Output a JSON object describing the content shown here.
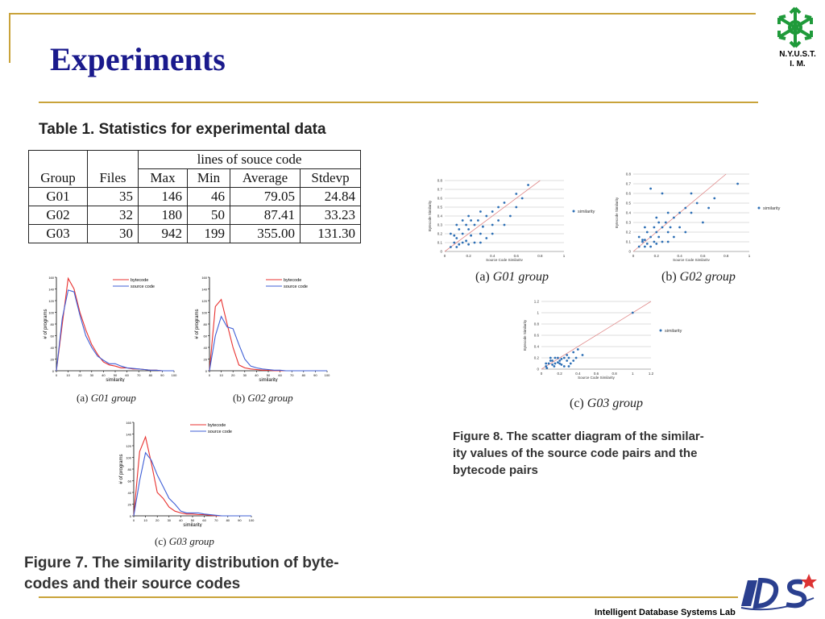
{
  "slide": {
    "title": "Experiments"
  },
  "logo": {
    "caption_line1": "N.Y.U.S.T.",
    "caption_line2": "I. M."
  },
  "table1": {
    "caption": "Table 1. Statistics for experimental data",
    "group_header": "lines of souce code",
    "columns": [
      "Group",
      "Files",
      "Max",
      "Min",
      "Average",
      "Stdevp"
    ],
    "rows": [
      [
        "G01",
        "35",
        "146",
        "46",
        "79.05",
        "24.84"
      ],
      [
        "G02",
        "32",
        "180",
        "50",
        "87.41",
        "33.23"
      ],
      [
        "G03",
        "30",
        "942",
        "199",
        "355.00",
        "131.30"
      ]
    ]
  },
  "figure7": {
    "caption": "Figure 7. The similarity distribution of byte-codes and their source codes",
    "caption_line1": "Figure 7. The similarity distribution of byte-",
    "caption_line2": "codes and their source codes",
    "panels": [
      {
        "label": "(a)",
        "group": "G01 group"
      },
      {
        "label": "(b)",
        "group": "G02 group"
      },
      {
        "label": "(c)",
        "group": "G03 group"
      }
    ],
    "xlabel": "similarity",
    "ylabel": "# of programs",
    "legend": [
      "bytecode",
      "source code"
    ]
  },
  "figure8": {
    "caption_line1": "Figure 8. The scatter diagram of the similar-",
    "caption_line2": "ity values of the source code pairs and the",
    "caption_line3": "bytecode pairs",
    "panels": [
      {
        "label": "(a)",
        "group": "G01 group"
      },
      {
        "label": "(b)",
        "group": "G02 group"
      },
      {
        "label": "(c)",
        "group": "G03 group"
      }
    ],
    "xlabel": "Source Code Similarity",
    "ylabel": "Bytecode Similarity",
    "legend": "similarity"
  },
  "chart_data": [
    {
      "id": "fig7a",
      "type": "line",
      "title": "",
      "xlabel": "similarity",
      "ylabel": "# of programs",
      "xlim": [
        0,
        100
      ],
      "ylim": [
        0,
        160
      ],
      "x": [
        0,
        5,
        10,
        15,
        20,
        25,
        30,
        35,
        40,
        45,
        50,
        55,
        60,
        65,
        70,
        75,
        80,
        85,
        90,
        95,
        100
      ],
      "series": [
        {
          "name": "bytecode",
          "color": "#e8312f",
          "values": [
            0,
            80,
            158,
            140,
            100,
            70,
            45,
            28,
            15,
            10,
            8,
            5,
            5,
            3,
            3,
            2,
            1,
            1,
            0,
            0,
            0
          ]
        },
        {
          "name": "source code",
          "color": "#3f5fd6",
          "values": [
            0,
            90,
            138,
            135,
            95,
            60,
            40,
            25,
            18,
            12,
            12,
            8,
            5,
            4,
            3,
            2,
            1,
            1,
            0,
            0,
            0
          ]
        }
      ]
    },
    {
      "id": "fig7b",
      "type": "line",
      "title": "",
      "xlabel": "similarity",
      "ylabel": "# of programs",
      "xlim": [
        0,
        100
      ],
      "ylim": [
        0,
        160
      ],
      "x": [
        0,
        5,
        10,
        15,
        20,
        25,
        30,
        35,
        40,
        45,
        50,
        55,
        60,
        65,
        70,
        75,
        80,
        85,
        90,
        95,
        100
      ],
      "series": [
        {
          "name": "bytecode",
          "color": "#e8312f",
          "values": [
            0,
            110,
            122,
            80,
            40,
            10,
            5,
            3,
            2,
            1,
            1,
            0,
            0,
            0,
            0,
            0,
            0,
            0,
            0,
            0,
            0
          ]
        },
        {
          "name": "source code",
          "color": "#3f5fd6",
          "values": [
            0,
            60,
            93,
            75,
            72,
            45,
            20,
            8,
            5,
            3,
            2,
            1,
            1,
            0,
            0,
            0,
            0,
            0,
            0,
            0,
            0
          ]
        }
      ]
    },
    {
      "id": "fig7c",
      "type": "line",
      "title": "",
      "xlabel": "similarity",
      "ylabel": "# of programs",
      "xlim": [
        0,
        100
      ],
      "ylim": [
        0,
        160
      ],
      "x": [
        0,
        5,
        10,
        15,
        20,
        25,
        30,
        35,
        40,
        45,
        50,
        55,
        60,
        65,
        70,
        75,
        80,
        85,
        90,
        95,
        100
      ],
      "series": [
        {
          "name": "bytecode",
          "color": "#e8312f",
          "values": [
            0,
            110,
            135,
            90,
            40,
            30,
            15,
            8,
            5,
            3,
            3,
            2,
            2,
            1,
            0,
            0,
            0,
            0,
            0,
            0,
            0
          ]
        },
        {
          "name": "source code",
          "color": "#3f5fd6",
          "values": [
            0,
            60,
            108,
            95,
            70,
            50,
            30,
            20,
            8,
            5,
            5,
            5,
            3,
            2,
            1,
            0,
            0,
            0,
            0,
            0,
            0
          ]
        }
      ]
    },
    {
      "id": "fig8a",
      "type": "scatter",
      "title": "",
      "xlabel": "Source Code Similarity",
      "ylabel": "Bytecode Similarity",
      "xlim": [
        0,
        1
      ],
      "ylim": [
        0,
        0.8
      ],
      "legend": "similarity",
      "color": "#2d6fb5",
      "line_color": "#e08a8a",
      "points": [
        [
          0.05,
          0.05
        ],
        [
          0.08,
          0.1
        ],
        [
          0.1,
          0.15
        ],
        [
          0.12,
          0.08
        ],
        [
          0.15,
          0.2
        ],
        [
          0.18,
          0.12
        ],
        [
          0.2,
          0.25
        ],
        [
          0.22,
          0.18
        ],
        [
          0.25,
          0.3
        ],
        [
          0.1,
          0.3
        ],
        [
          0.3,
          0.2
        ],
        [
          0.28,
          0.35
        ],
        [
          0.35,
          0.4
        ],
        [
          0.32,
          0.28
        ],
        [
          0.4,
          0.45
        ],
        [
          0.45,
          0.5
        ],
        [
          0.5,
          0.55
        ],
        [
          0.6,
          0.65
        ],
        [
          0.7,
          0.75
        ],
        [
          0.15,
          0.35
        ],
        [
          0.2,
          0.4
        ],
        [
          0.05,
          0.2
        ],
        [
          0.25,
          0.1
        ],
        [
          0.35,
          0.15
        ],
        [
          0.4,
          0.3
        ],
        [
          0.5,
          0.3
        ],
        [
          0.55,
          0.4
        ],
        [
          0.1,
          0.05
        ],
        [
          0.15,
          0.1
        ],
        [
          0.2,
          0.08
        ],
        [
          0.3,
          0.1
        ],
        [
          0.12,
          0.25
        ],
        [
          0.18,
          0.3
        ],
        [
          0.22,
          0.35
        ],
        [
          0.4,
          0.2
        ],
        [
          0.08,
          0.18
        ],
        [
          0.6,
          0.5
        ],
        [
          0.65,
          0.6
        ],
        [
          0.45,
          0.35
        ],
        [
          0.3,
          0.45
        ]
      ]
    },
    {
      "id": "fig8b",
      "type": "scatter",
      "title": "",
      "xlabel": "Source Code Similarity",
      "ylabel": "Bytecode Similarity",
      "xlim": [
        0,
        1
      ],
      "ylim": [
        0,
        0.8
      ],
      "legend": "similarity",
      "color": "#2d6fb5",
      "line_color": "#e08a8a",
      "points": [
        [
          0.05,
          0.05
        ],
        [
          0.08,
          0.1
        ],
        [
          0.1,
          0.12
        ],
        [
          0.12,
          0.08
        ],
        [
          0.15,
          0.15
        ],
        [
          0.18,
          0.1
        ],
        [
          0.2,
          0.2
        ],
        [
          0.22,
          0.15
        ],
        [
          0.25,
          0.25
        ],
        [
          0.1,
          0.25
        ],
        [
          0.3,
          0.2
        ],
        [
          0.28,
          0.3
        ],
        [
          0.35,
          0.35
        ],
        [
          0.32,
          0.25
        ],
        [
          0.4,
          0.4
        ],
        [
          0.45,
          0.45
        ],
        [
          0.5,
          0.4
        ],
        [
          0.15,
          0.65
        ],
        [
          0.25,
          0.6
        ],
        [
          0.5,
          0.6
        ],
        [
          0.7,
          0.55
        ],
        [
          0.9,
          0.7
        ],
        [
          0.2,
          0.35
        ],
        [
          0.05,
          0.15
        ],
        [
          0.25,
          0.1
        ],
        [
          0.35,
          0.15
        ],
        [
          0.4,
          0.25
        ],
        [
          0.6,
          0.3
        ],
        [
          0.1,
          0.05
        ],
        [
          0.15,
          0.05
        ],
        [
          0.2,
          0.08
        ],
        [
          0.3,
          0.1
        ],
        [
          0.12,
          0.2
        ],
        [
          0.18,
          0.25
        ],
        [
          0.22,
          0.3
        ],
        [
          0.45,
          0.2
        ],
        [
          0.08,
          0.12
        ],
        [
          0.55,
          0.5
        ],
        [
          0.65,
          0.45
        ],
        [
          0.3,
          0.4
        ]
      ]
    },
    {
      "id": "fig8c",
      "type": "scatter",
      "title": "",
      "xlabel": "Source Code Similarity",
      "ylabel": "Bytecode Similarity",
      "xlim": [
        0,
        1.2
      ],
      "ylim": [
        0,
        1.2
      ],
      "legend": "similarity",
      "color": "#2d6fb5",
      "line_color": "#e08a8a",
      "points": [
        [
          0.05,
          0.05
        ],
        [
          0.08,
          0.1
        ],
        [
          0.1,
          0.15
        ],
        [
          0.12,
          0.08
        ],
        [
          0.15,
          0.2
        ],
        [
          0.18,
          0.12
        ],
        [
          0.2,
          0.1
        ],
        [
          0.22,
          0.18
        ],
        [
          0.25,
          0.05
        ],
        [
          0.1,
          0.2
        ],
        [
          0.3,
          0.2
        ],
        [
          0.28,
          0.15
        ],
        [
          0.35,
          0.3
        ],
        [
          0.32,
          0.1
        ],
        [
          0.4,
          0.35
        ],
        [
          0.15,
          0.1
        ],
        [
          0.2,
          0.15
        ],
        [
          0.05,
          0.1
        ],
        [
          0.12,
          0.15
        ],
        [
          0.18,
          0.2
        ],
        [
          0.25,
          0.2
        ],
        [
          0.3,
          0.05
        ],
        [
          0.06,
          0.02
        ],
        [
          0.14,
          0.05
        ],
        [
          0.22,
          0.08
        ],
        [
          0.28,
          0.25
        ],
        [
          0.35,
          0.15
        ],
        [
          0.38,
          0.2
        ],
        [
          0.45,
          0.25
        ],
        [
          1.0,
          1.0
        ]
      ]
    }
  ]
}
